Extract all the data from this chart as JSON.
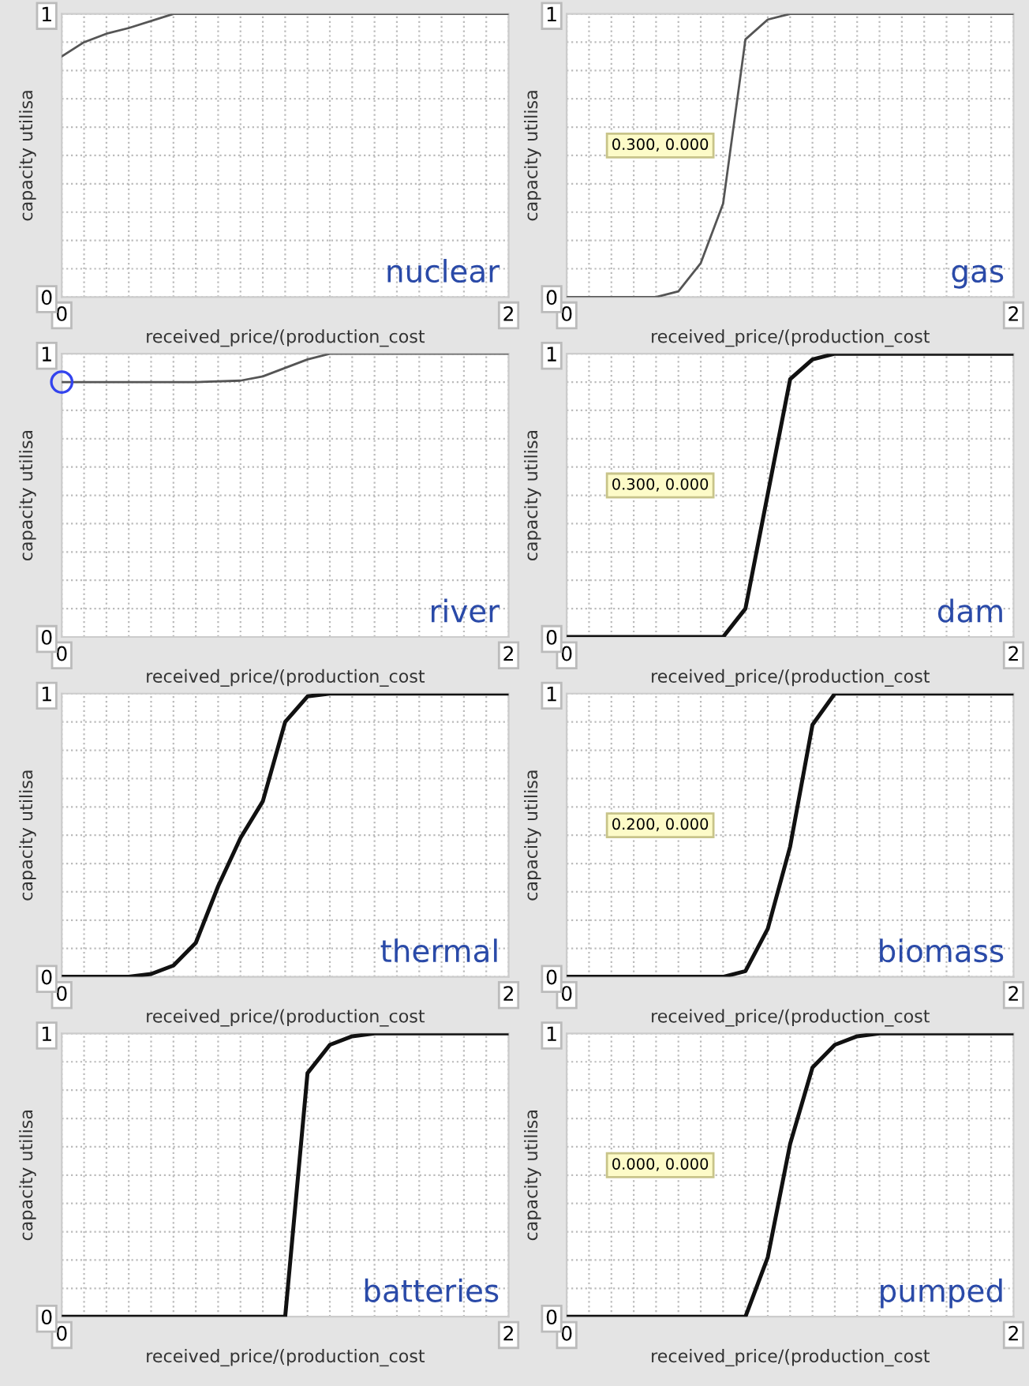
{
  "chart_data": [
    {
      "type": "line",
      "title": "nuclear",
      "xlabel": "received_price/(production_cost",
      "ylabel": "capacity utilisa",
      "x": [
        0,
        0.1,
        0.2,
        0.3,
        0.5,
        2
      ],
      "series": [
        {
          "color": "#555555",
          "values": [
            0.85,
            0.9,
            0.93,
            0.95,
            1,
            1
          ]
        }
      ],
      "xlim": [
        0,
        2
      ],
      "ylim": [
        0,
        1
      ],
      "xticks": [
        0,
        {
          "value": 0.1,
          "label": null
        },
        {
          "value": 0.2,
          "label": null
        },
        {
          "value": 0.3,
          "label": null
        },
        {
          "value": 0.4,
          "label": null
        },
        {
          "value": 0.5,
          "label": null
        },
        {
          "value": 0.6,
          "label": null
        },
        {
          "value": 0.7,
          "label": null
        },
        {
          "value": 0.8,
          "label": null
        },
        {
          "value": 0.9,
          "label": null
        },
        {
          "value": 1,
          "label": null
        },
        {
          "value": 1.1,
          "label": null
        },
        {
          "value": 1.2,
          "label": null
        },
        {
          "value": 1.3,
          "label": null
        },
        {
          "value": 1.4,
          "label": null
        },
        {
          "value": 1.5,
          "label": null
        },
        {
          "value": 1.6,
          "label": null
        },
        {
          "value": 1.7,
          "label": null
        },
        {
          "value": 1.8,
          "label": null
        },
        {
          "value": 1.9,
          "label": null
        },
        2
      ],
      "yticks": [
        0,
        {
          "value": 0.1,
          "label": null
        },
        {
          "value": 0.2,
          "label": null
        },
        {
          "value": 0.3,
          "label": null
        },
        {
          "value": 0.4,
          "label": null
        },
        {
          "value": 0.5,
          "label": null
        },
        {
          "value": 0.6,
          "label": null
        },
        {
          "value": 0.7,
          "label": null
        },
        {
          "value": 0.8,
          "label": null
        },
        {
          "value": 0.9,
          "label": null
        },
        1
      ],
      "grid": true,
      "line_style": "solid",
      "marker": "none"
    },
    {
      "type": "line",
      "title": "gas",
      "xlabel": "received_price/(production_cost",
      "ylabel": "capacity utilisa",
      "x": [
        0,
        0.4,
        0.5,
        0.6,
        0.7,
        0.8,
        0.9,
        1.0,
        2
      ],
      "series": [
        {
          "color": "#555555",
          "values": [
            0,
            0,
            0.02,
            0.12,
            0.33,
            0.91,
            0.98,
            1,
            1
          ]
        }
      ],
      "annotations": [
        "0.300, 0.000"
      ],
      "xlim": [
        0,
        2
      ],
      "ylim": [
        0,
        1
      ],
      "xticks": [
        0,
        {
          "value": 0.1,
          "label": null
        },
        {
          "value": 0.2,
          "label": null
        },
        {
          "value": 0.3,
          "label": null
        },
        {
          "value": 0.4,
          "label": null
        },
        {
          "value": 0.5,
          "label": null
        },
        {
          "value": 0.6,
          "label": null
        },
        {
          "value": 0.7,
          "label": null
        },
        {
          "value": 0.8,
          "label": null
        },
        {
          "value": 0.9,
          "label": null
        },
        {
          "value": 1,
          "label": null
        },
        {
          "value": 1.1,
          "label": null
        },
        {
          "value": 1.2,
          "label": null
        },
        {
          "value": 1.3,
          "label": null
        },
        {
          "value": 1.4,
          "label": null
        },
        {
          "value": 1.5,
          "label": null
        },
        {
          "value": 1.6,
          "label": null
        },
        {
          "value": 1.7,
          "label": null
        },
        {
          "value": 1.8,
          "label": null
        },
        {
          "value": 1.9,
          "label": null
        },
        2
      ],
      "yticks": [
        0,
        {
          "value": 0.1,
          "label": null
        },
        {
          "value": 0.2,
          "label": null
        },
        {
          "value": 0.3,
          "label": null
        },
        {
          "value": 0.4,
          "label": null
        },
        {
          "value": 0.5,
          "label": null
        },
        {
          "value": 0.6,
          "label": null
        },
        {
          "value": 0.7,
          "label": null
        },
        {
          "value": 0.8,
          "label": null
        },
        {
          "value": 0.9,
          "label": null
        },
        1
      ],
      "grid": true,
      "line_style": "solid",
      "marker": "none"
    },
    {
      "type": "line",
      "title": "river",
      "xlabel": "received_price/(production_cost",
      "ylabel": "capacity utilisa",
      "x": [
        0,
        0.6,
        0.8,
        0.9,
        1.1,
        1.2,
        2
      ],
      "series": [
        {
          "color": "#555555",
          "values": [
            0.9,
            0.9,
            0.905,
            0.92,
            0.98,
            1,
            1
          ]
        },
        {
          "type": "scatter",
          "color": "#3344ee",
          "x": [
            0
          ],
          "values": [
            0.9
          ],
          "marker": "circle"
        }
      ],
      "xlim": [
        0,
        2
      ],
      "ylim": [
        0,
        1
      ],
      "xticks": [
        0,
        {
          "value": 0.1,
          "label": null
        },
        {
          "value": 0.2,
          "label": null
        },
        {
          "value": 0.3,
          "label": null
        },
        {
          "value": 0.4,
          "label": null
        },
        {
          "value": 0.5,
          "label": null
        },
        {
          "value": 0.6,
          "label": null
        },
        {
          "value": 0.7,
          "label": null
        },
        {
          "value": 0.8,
          "label": null
        },
        {
          "value": 0.9,
          "label": null
        },
        {
          "value": 1,
          "label": null
        },
        {
          "value": 1.1,
          "label": null
        },
        {
          "value": 1.2,
          "label": null
        },
        {
          "value": 1.3,
          "label": null
        },
        {
          "value": 1.4,
          "label": null
        },
        {
          "value": 1.5,
          "label": null
        },
        {
          "value": 1.6,
          "label": null
        },
        {
          "value": 1.7,
          "label": null
        },
        {
          "value": 1.8,
          "label": null
        },
        {
          "value": 1.9,
          "label": null
        },
        2
      ],
      "yticks": [
        0,
        {
          "value": 0.1,
          "label": null
        },
        {
          "value": 0.2,
          "label": null
        },
        {
          "value": 0.3,
          "label": null
        },
        {
          "value": 0.4,
          "label": null
        },
        {
          "value": 0.5,
          "label": null
        },
        {
          "value": 0.6,
          "label": null
        },
        {
          "value": 0.7,
          "label": null
        },
        {
          "value": 0.8,
          "label": null
        },
        {
          "value": 0.9,
          "label": null
        },
        1
      ],
      "grid": true,
      "line_style": "solid",
      "marker": "none"
    },
    {
      "type": "line",
      "title": "dam",
      "xlabel": "received_price/(production_cost",
      "ylabel": "capacity utilisa",
      "x": [
        0,
        0.7,
        0.8,
        1.0,
        1.1,
        1.2,
        2
      ],
      "series": [
        {
          "color": "#111111",
          "values": [
            0,
            0,
            0.1,
            0.91,
            0.98,
            1,
            1
          ]
        }
      ],
      "annotations": [
        "0.300, 0.000"
      ],
      "xlim": [
        0,
        2
      ],
      "ylim": [
        0,
        1
      ],
      "xticks": [
        0,
        {
          "value": 0.1,
          "label": null
        },
        {
          "value": 0.2,
          "label": null
        },
        {
          "value": 0.3,
          "label": null
        },
        {
          "value": 0.4,
          "label": null
        },
        {
          "value": 0.5,
          "label": null
        },
        {
          "value": 0.6,
          "label": null
        },
        {
          "value": 0.7,
          "label": null
        },
        {
          "value": 0.8,
          "label": null
        },
        {
          "value": 0.9,
          "label": null
        },
        {
          "value": 1,
          "label": null
        },
        {
          "value": 1.1,
          "label": null
        },
        {
          "value": 1.2,
          "label": null
        },
        {
          "value": 1.3,
          "label": null
        },
        {
          "value": 1.4,
          "label": null
        },
        {
          "value": 1.5,
          "label": null
        },
        {
          "value": 1.6,
          "label": null
        },
        {
          "value": 1.7,
          "label": null
        },
        {
          "value": 1.8,
          "label": null
        },
        {
          "value": 1.9,
          "label": null
        },
        2
      ],
      "yticks": [
        0,
        {
          "value": 0.1,
          "label": null
        },
        {
          "value": 0.2,
          "label": null
        },
        {
          "value": 0.3,
          "label": null
        },
        {
          "value": 0.4,
          "label": null
        },
        {
          "value": 0.5,
          "label": null
        },
        {
          "value": 0.6,
          "label": null
        },
        {
          "value": 0.7,
          "label": null
        },
        {
          "value": 0.8,
          "label": null
        },
        {
          "value": 0.9,
          "label": null
        },
        1
      ],
      "grid": true,
      "line_style": "solid",
      "marker": "none"
    },
    {
      "type": "line",
      "title": "thermal",
      "xlabel": "received_price/(production_cost",
      "ylabel": "capacity utilisa",
      "x": [
        0,
        0.3,
        0.4,
        0.5,
        0.6,
        0.7,
        0.8,
        0.9,
        1.0,
        1.1,
        1.2,
        2
      ],
      "series": [
        {
          "color": "#111111",
          "values": [
            0,
            0,
            0.01,
            0.04,
            0.12,
            0.32,
            0.49,
            0.62,
            0.9,
            0.99,
            1,
            1
          ]
        }
      ],
      "xlim": [
        0,
        2
      ],
      "ylim": [
        0,
        1
      ],
      "xticks": [
        0,
        {
          "value": 0.1,
          "label": null
        },
        {
          "value": 0.2,
          "label": null
        },
        {
          "value": 0.3,
          "label": null
        },
        {
          "value": 0.4,
          "label": null
        },
        {
          "value": 0.5,
          "label": null
        },
        {
          "value": 0.6,
          "label": null
        },
        {
          "value": 0.7,
          "label": null
        },
        {
          "value": 0.8,
          "label": null
        },
        {
          "value": 0.9,
          "label": null
        },
        {
          "value": 1,
          "label": null
        },
        {
          "value": 1.1,
          "label": null
        },
        {
          "value": 1.2,
          "label": null
        },
        {
          "value": 1.3,
          "label": null
        },
        {
          "value": 1.4,
          "label": null
        },
        {
          "value": 1.5,
          "label": null
        },
        {
          "value": 1.6,
          "label": null
        },
        {
          "value": 1.7,
          "label": null
        },
        {
          "value": 1.8,
          "label": null
        },
        {
          "value": 1.9,
          "label": null
        },
        2
      ],
      "yticks": [
        0,
        {
          "value": 0.1,
          "label": null
        },
        {
          "value": 0.2,
          "label": null
        },
        {
          "value": 0.3,
          "label": null
        },
        {
          "value": 0.4,
          "label": null
        },
        {
          "value": 0.5,
          "label": null
        },
        {
          "value": 0.6,
          "label": null
        },
        {
          "value": 0.7,
          "label": null
        },
        {
          "value": 0.8,
          "label": null
        },
        {
          "value": 0.9,
          "label": null
        },
        1
      ],
      "grid": true,
      "line_style": "solid",
      "marker": "none"
    },
    {
      "type": "line",
      "title": "biomass",
      "xlabel": "received_price/(production_cost",
      "ylabel": "capacity utilisa",
      "x": [
        0,
        0.7,
        0.8,
        0.9,
        1.0,
        1.1,
        1.2,
        2
      ],
      "series": [
        {
          "color": "#111111",
          "values": [
            0,
            0,
            0.02,
            0.17,
            0.46,
            0.89,
            1,
            1
          ]
        }
      ],
      "annotations": [
        "0.200, 0.000"
      ],
      "xlim": [
        0,
        2
      ],
      "ylim": [
        0,
        1
      ],
      "xticks": [
        0,
        {
          "value": 0.1,
          "label": null
        },
        {
          "value": 0.2,
          "label": null
        },
        {
          "value": 0.3,
          "label": null
        },
        {
          "value": 0.4,
          "label": null
        },
        {
          "value": 0.5,
          "label": null
        },
        {
          "value": 0.6,
          "label": null
        },
        {
          "value": 0.7,
          "label": null
        },
        {
          "value": 0.8,
          "label": null
        },
        {
          "value": 0.9,
          "label": null
        },
        {
          "value": 1,
          "label": null
        },
        {
          "value": 1.1,
          "label": null
        },
        {
          "value": 1.2,
          "label": null
        },
        {
          "value": 1.3,
          "label": null
        },
        {
          "value": 1.4,
          "label": null
        },
        {
          "value": 1.5,
          "label": null
        },
        {
          "value": 1.6,
          "label": null
        },
        {
          "value": 1.7,
          "label": null
        },
        {
          "value": 1.8,
          "label": null
        },
        {
          "value": 1.9,
          "label": null
        },
        2
      ],
      "yticks": [
        0,
        {
          "value": 0.1,
          "label": null
        },
        {
          "value": 0.2,
          "label": null
        },
        {
          "value": 0.3,
          "label": null
        },
        {
          "value": 0.4,
          "label": null
        },
        {
          "value": 0.5,
          "label": null
        },
        {
          "value": 0.6,
          "label": null
        },
        {
          "value": 0.7,
          "label": null
        },
        {
          "value": 0.8,
          "label": null
        },
        {
          "value": 0.9,
          "label": null
        },
        1
      ],
      "grid": true,
      "line_style": "solid",
      "marker": "none"
    },
    {
      "type": "line",
      "title": "batteries",
      "xlabel": "received_price/(production_cost",
      "ylabel": "capacity utilisa",
      "x": [
        0,
        1.0,
        1.1,
        1.2,
        1.3,
        1.4,
        2
      ],
      "series": [
        {
          "color": "#111111",
          "values": [
            0,
            0,
            0.86,
            0.96,
            0.99,
            1,
            1
          ]
        }
      ],
      "xlim": [
        0,
        2
      ],
      "ylim": [
        0,
        1
      ],
      "xticks": [
        0,
        {
          "value": 0.1,
          "label": null
        },
        {
          "value": 0.2,
          "label": null
        },
        {
          "value": 0.3,
          "label": null
        },
        {
          "value": 0.4,
          "label": null
        },
        {
          "value": 0.5,
          "label": null
        },
        {
          "value": 0.6,
          "label": null
        },
        {
          "value": 0.7,
          "label": null
        },
        {
          "value": 0.8,
          "label": null
        },
        {
          "value": 0.9,
          "label": null
        },
        {
          "value": 1,
          "label": null
        },
        {
          "value": 1.1,
          "label": null
        },
        {
          "value": 1.2,
          "label": null
        },
        {
          "value": 1.3,
          "label": null
        },
        {
          "value": 1.4,
          "label": null
        },
        {
          "value": 1.5,
          "label": null
        },
        {
          "value": 1.6,
          "label": null
        },
        {
          "value": 1.7,
          "label": null
        },
        {
          "value": 1.8,
          "label": null
        },
        {
          "value": 1.9,
          "label": null
        },
        2
      ],
      "yticks": [
        0,
        {
          "value": 0.1,
          "label": null
        },
        {
          "value": 0.2,
          "label": null
        },
        {
          "value": 0.3,
          "label": null
        },
        {
          "value": 0.4,
          "label": null
        },
        {
          "value": 0.5,
          "label": null
        },
        {
          "value": 0.6,
          "label": null
        },
        {
          "value": 0.7,
          "label": null
        },
        {
          "value": 0.8,
          "label": null
        },
        {
          "value": 0.9,
          "label": null
        },
        1
      ],
      "grid": true,
      "line_style": "solid",
      "marker": "none"
    },
    {
      "type": "line",
      "title": "pumped",
      "xlabel": "received_price/(production_cost",
      "ylabel": "capacity utilisa",
      "x": [
        0,
        0.8,
        0.9,
        1.0,
        1.1,
        1.2,
        1.3,
        1.4,
        2
      ],
      "series": [
        {
          "color": "#111111",
          "values": [
            0,
            0,
            0.21,
            0.61,
            0.88,
            0.96,
            0.99,
            1,
            1
          ]
        }
      ],
      "annotations": [
        "0.000, 0.000"
      ],
      "xlim": [
        0,
        2
      ],
      "ylim": [
        0,
        1
      ],
      "xticks": [
        0,
        {
          "value": 0.1,
          "label": null
        },
        {
          "value": 0.2,
          "label": null
        },
        {
          "value": 0.3,
          "label": null
        },
        {
          "value": 0.4,
          "label": null
        },
        {
          "value": 0.5,
          "label": null
        },
        {
          "value": 0.6,
          "label": null
        },
        {
          "value": 0.7,
          "label": null
        },
        {
          "value": 0.8,
          "label": null
        },
        {
          "value": 0.9,
          "label": null
        },
        {
          "value": 1,
          "label": null
        },
        {
          "value": 1.1,
          "label": null
        },
        {
          "value": 1.2,
          "label": null
        },
        {
          "value": 1.3,
          "label": null
        },
        {
          "value": 1.4,
          "label": null
        },
        {
          "value": 1.5,
          "label": null
        },
        {
          "value": 1.6,
          "label": null
        },
        {
          "value": 1.7,
          "label": null
        },
        {
          "value": 1.8,
          "label": null
        },
        {
          "value": 1.9,
          "label": null
        },
        2
      ],
      "yticks": [
        0,
        {
          "value": 0.1,
          "label": null
        },
        {
          "value": 0.2,
          "label": null
        },
        {
          "value": 0.3,
          "label": null
        },
        {
          "value": 0.4,
          "label": null
        },
        {
          "value": 0.5,
          "label": null
        },
        {
          "value": 0.6,
          "label": null
        },
        {
          "value": 0.7,
          "label": null
        },
        {
          "value": 0.8,
          "label": null
        },
        {
          "value": 0.9,
          "label": null
        },
        1
      ],
      "grid": true,
      "line_style": "solid",
      "marker": "none"
    }
  ]
}
